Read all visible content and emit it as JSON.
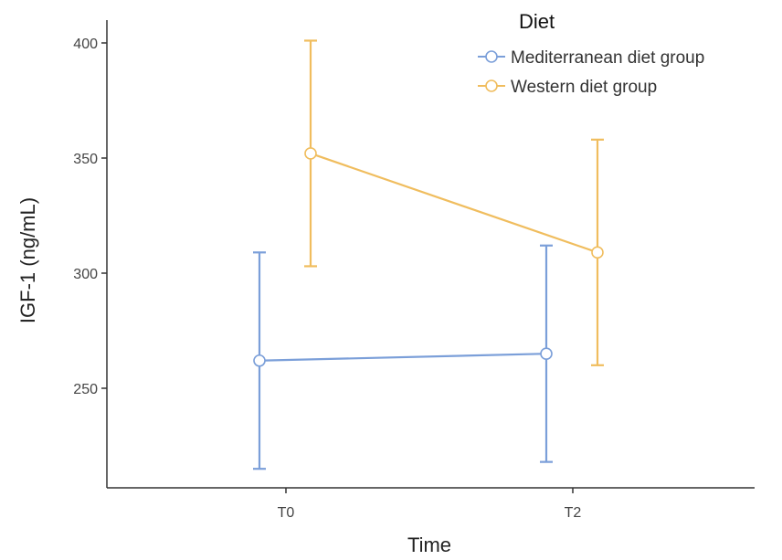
{
  "chart_data": {
    "type": "line",
    "title": "",
    "xlabel": "Time",
    "ylabel": "IGF-1 (ng/mL)",
    "categories": [
      "T0",
      "T2"
    ],
    "y_ticks": [
      250,
      300,
      350,
      400
    ],
    "ylim": [
      205,
      410
    ],
    "grid": false,
    "legend": {
      "title": "Diet",
      "placement": "top-right"
    },
    "series": [
      {
        "name": "Mediterranean diet group",
        "color": "#7b9fd9",
        "values": [
          262,
          265
        ],
        "error_low": [
          215,
          218
        ],
        "error_high": [
          309,
          312
        ]
      },
      {
        "name": "Western diet group",
        "color": "#f0bd5e",
        "values": [
          352,
          309
        ],
        "error_low": [
          303,
          260
        ],
        "error_high": [
          401,
          358
        ]
      }
    ]
  }
}
